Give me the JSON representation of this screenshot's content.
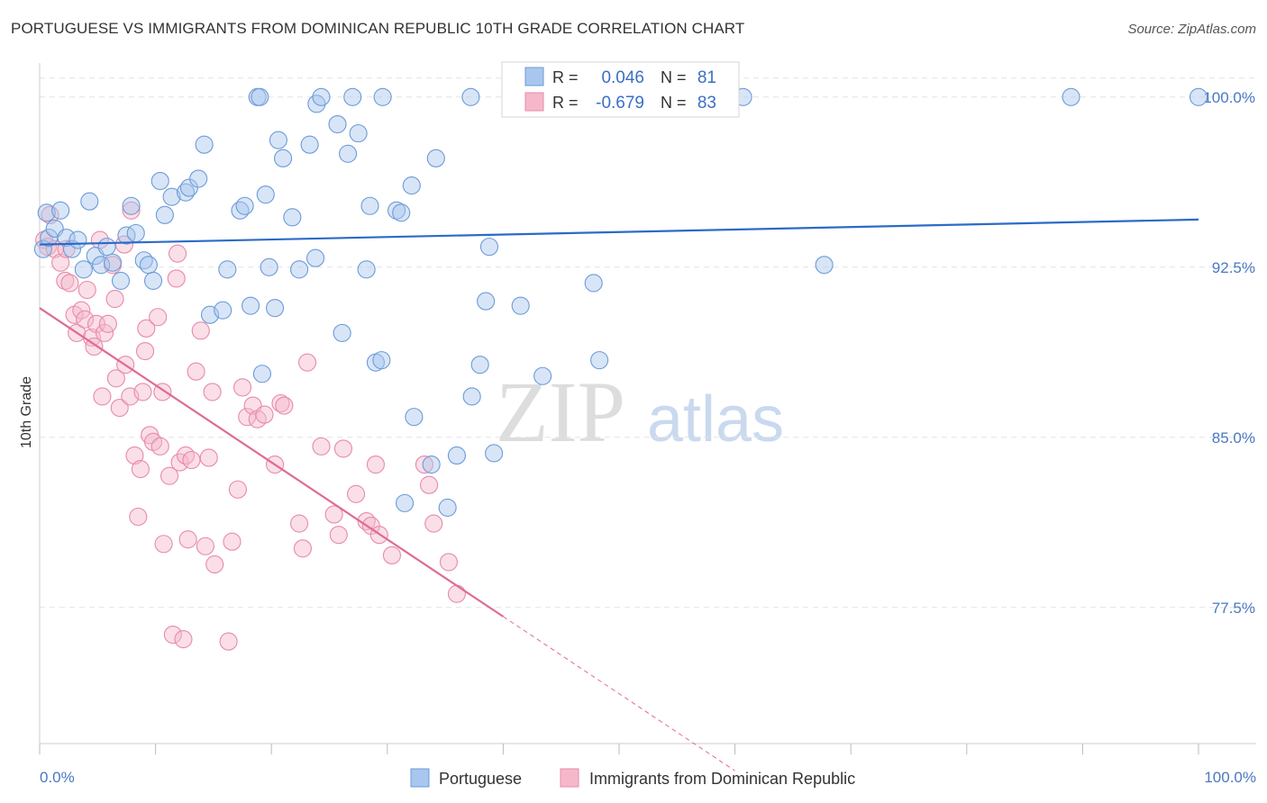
{
  "title": "PORTUGUESE VS IMMIGRANTS FROM DOMINICAN REPUBLIC 10TH GRADE CORRELATION CHART",
  "source": "Source: ZipAtlas.com",
  "watermark": {
    "zip": "ZIP",
    "atlas": "atlas"
  },
  "legend_top": {
    "r_label": "R =",
    "n_label": "N =",
    "rows": [
      {
        "r": "0.046",
        "n": "81"
      },
      {
        "r": "-0.679",
        "n": "83"
      }
    ]
  },
  "colors": {
    "blue_fill": "#a9c6ee",
    "blue_stroke": "#6c9bd8",
    "blue_line": "#2a6bc8",
    "pink_fill": "#f5b8cb",
    "pink_stroke": "#e88aa8",
    "pink_line": "#e06a93",
    "label": "#4a78c2",
    "grid": "#e3e3e3"
  },
  "chart_data": {
    "type": "scatter",
    "title": "PORTUGUESE VS IMMIGRANTS FROM DOMINICAN REPUBLIC 10TH GRADE CORRELATION CHART",
    "xlabel": "",
    "ylabel": "10th Grade",
    "xlim": [
      0,
      100
    ],
    "ylim": [
      71.5,
      101.5
    ],
    "x_tick_labels": [
      "0.0%",
      "100.0%"
    ],
    "y_ticks": [
      77.5,
      85.0,
      92.5,
      100.0
    ],
    "y_tick_labels": [
      "77.5%",
      "85.0%",
      "92.5%",
      "100.0%"
    ],
    "series": [
      {
        "name": "Portuguese",
        "r": 0.046,
        "n": 81,
        "trend": {
          "x0": 0,
          "y0": 93.5,
          "x1": 100,
          "y1": 94.6
        },
        "points": [
          [
            0.3,
            93.3
          ],
          [
            0.6,
            94.9
          ],
          [
            0.8,
            93.8
          ],
          [
            1.3,
            94.2
          ],
          [
            1.8,
            95.0
          ],
          [
            2.3,
            93.8
          ],
          [
            2.8,
            93.3
          ],
          [
            3.3,
            93.7
          ],
          [
            3.8,
            92.4
          ],
          [
            4.3,
            95.4
          ],
          [
            4.8,
            93.0
          ],
          [
            5.3,
            92.6
          ],
          [
            5.8,
            93.4
          ],
          [
            6.3,
            92.7
          ],
          [
            7.0,
            91.9
          ],
          [
            7.5,
            93.9
          ],
          [
            7.9,
            95.2
          ],
          [
            8.3,
            94.0
          ],
          [
            9.0,
            92.8
          ],
          [
            9.4,
            92.6
          ],
          [
            9.8,
            91.9
          ],
          [
            10.4,
            96.3
          ],
          [
            10.8,
            94.8
          ],
          [
            11.4,
            95.6
          ],
          [
            12.6,
            95.8
          ],
          [
            12.9,
            96.0
          ],
          [
            13.7,
            96.4
          ],
          [
            14.2,
            97.9
          ],
          [
            14.7,
            90.4
          ],
          [
            15.8,
            90.6
          ],
          [
            16.2,
            92.4
          ],
          [
            17.3,
            95.0
          ],
          [
            17.7,
            95.2
          ],
          [
            18.2,
            90.8
          ],
          [
            18.8,
            100.0
          ],
          [
            19.0,
            100.0
          ],
          [
            19.5,
            95.7
          ],
          [
            19.2,
            87.8
          ],
          [
            19.8,
            92.5
          ],
          [
            20.3,
            90.7
          ],
          [
            20.6,
            98.1
          ],
          [
            21.0,
            97.3
          ],
          [
            21.8,
            94.7
          ],
          [
            22.4,
            92.4
          ],
          [
            23.3,
            97.9
          ],
          [
            23.8,
            92.9
          ],
          [
            23.9,
            99.7
          ],
          [
            24.3,
            100.0
          ],
          [
            25.7,
            98.8
          ],
          [
            26.1,
            89.6
          ],
          [
            26.6,
            97.5
          ],
          [
            27.0,
            100.0
          ],
          [
            27.5,
            98.4
          ],
          [
            28.2,
            92.4
          ],
          [
            28.5,
            95.2
          ],
          [
            29.0,
            88.3
          ],
          [
            29.5,
            88.4
          ],
          [
            29.6,
            100.0
          ],
          [
            30.8,
            95.0
          ],
          [
            31.2,
            94.9
          ],
          [
            32.1,
            96.1
          ],
          [
            32.3,
            85.9
          ],
          [
            31.5,
            82.1
          ],
          [
            33.8,
            83.8
          ],
          [
            34.2,
            97.3
          ],
          [
            35.2,
            81.9
          ],
          [
            36.0,
            84.2
          ],
          [
            37.2,
            100.0
          ],
          [
            37.3,
            86.8
          ],
          [
            38.0,
            88.2
          ],
          [
            38.5,
            91.0
          ],
          [
            38.8,
            93.4
          ],
          [
            39.2,
            84.3
          ],
          [
            41.5,
            90.8
          ],
          [
            43.4,
            87.7
          ],
          [
            47.8,
            91.8
          ],
          [
            48.3,
            88.4
          ],
          [
            60.7,
            100.0
          ],
          [
            67.7,
            92.6
          ],
          [
            89.0,
            100.0
          ],
          [
            100.0,
            100.0
          ]
        ]
      },
      {
        "name": "Immigrants from Dominican Republic",
        "r": -0.679,
        "n": 83,
        "trend": {
          "x0": 0,
          "y0": 90.7,
          "x1": 40,
          "y1": 77.1,
          "dash_x1": 60,
          "dash_y1": 70.3
        },
        "points": [
          [
            0.4,
            93.7
          ],
          [
            0.7,
            93.4
          ],
          [
            0.9,
            94.8
          ],
          [
            1.3,
            93.3
          ],
          [
            1.8,
            92.7
          ],
          [
            2.2,
            91.9
          ],
          [
            2.3,
            93.3
          ],
          [
            2.6,
            91.8
          ],
          [
            3.0,
            90.4
          ],
          [
            3.2,
            89.6
          ],
          [
            3.6,
            90.6
          ],
          [
            3.9,
            90.2
          ],
          [
            4.1,
            91.5
          ],
          [
            4.5,
            89.4
          ],
          [
            4.7,
            89.0
          ],
          [
            4.9,
            90.0
          ],
          [
            5.2,
            93.7
          ],
          [
            5.6,
            89.6
          ],
          [
            5.9,
            90.0
          ],
          [
            5.4,
            86.8
          ],
          [
            6.3,
            92.6
          ],
          [
            6.6,
            87.6
          ],
          [
            6.5,
            91.1
          ],
          [
            6.9,
            86.3
          ],
          [
            7.3,
            93.5
          ],
          [
            7.4,
            88.2
          ],
          [
            7.8,
            86.8
          ],
          [
            7.9,
            95.0
          ],
          [
            8.2,
            84.2
          ],
          [
            8.5,
            81.5
          ],
          [
            8.7,
            83.6
          ],
          [
            8.9,
            87.0
          ],
          [
            9.1,
            88.8
          ],
          [
            9.2,
            89.8
          ],
          [
            9.5,
            85.1
          ],
          [
            9.8,
            84.8
          ],
          [
            10.2,
            90.3
          ],
          [
            10.4,
            84.6
          ],
          [
            10.6,
            87.0
          ],
          [
            10.7,
            80.3
          ],
          [
            11.2,
            83.3
          ],
          [
            11.5,
            76.3
          ],
          [
            11.8,
            92.0
          ],
          [
            11.9,
            93.1
          ],
          [
            12.1,
            83.9
          ],
          [
            12.4,
            76.1
          ],
          [
            12.8,
            80.5
          ],
          [
            12.6,
            84.2
          ],
          [
            13.1,
            84.0
          ],
          [
            13.5,
            87.9
          ],
          [
            13.9,
            89.7
          ],
          [
            14.3,
            80.2
          ],
          [
            14.6,
            84.1
          ],
          [
            14.9,
            87.0
          ],
          [
            15.1,
            79.4
          ],
          [
            16.3,
            76.0
          ],
          [
            16.6,
            80.4
          ],
          [
            17.1,
            82.7
          ],
          [
            17.5,
            87.2
          ],
          [
            17.9,
            85.9
          ],
          [
            18.4,
            86.4
          ],
          [
            18.8,
            85.8
          ],
          [
            19.4,
            86.0
          ],
          [
            20.3,
            83.8
          ],
          [
            20.8,
            86.5
          ],
          [
            21.1,
            86.4
          ],
          [
            22.4,
            81.2
          ],
          [
            22.7,
            80.1
          ],
          [
            23.1,
            88.3
          ],
          [
            24.3,
            84.6
          ],
          [
            25.4,
            81.6
          ],
          [
            25.8,
            80.7
          ],
          [
            26.2,
            84.5
          ],
          [
            27.3,
            82.5
          ],
          [
            28.2,
            81.3
          ],
          [
            28.6,
            81.1
          ],
          [
            29.0,
            83.8
          ],
          [
            29.3,
            80.7
          ],
          [
            30.4,
            79.8
          ],
          [
            33.2,
            83.8
          ],
          [
            33.6,
            82.9
          ],
          [
            34.0,
            81.2
          ],
          [
            35.3,
            79.5
          ],
          [
            36.0,
            78.1
          ]
        ]
      }
    ]
  },
  "axis": {
    "ylabel": "10th Grade",
    "x_left": "0.0%",
    "x_right": "100.0%"
  },
  "legend_bottom": [
    {
      "label": "Portuguese"
    },
    {
      "label": "Immigrants from Dominican Republic"
    }
  ]
}
